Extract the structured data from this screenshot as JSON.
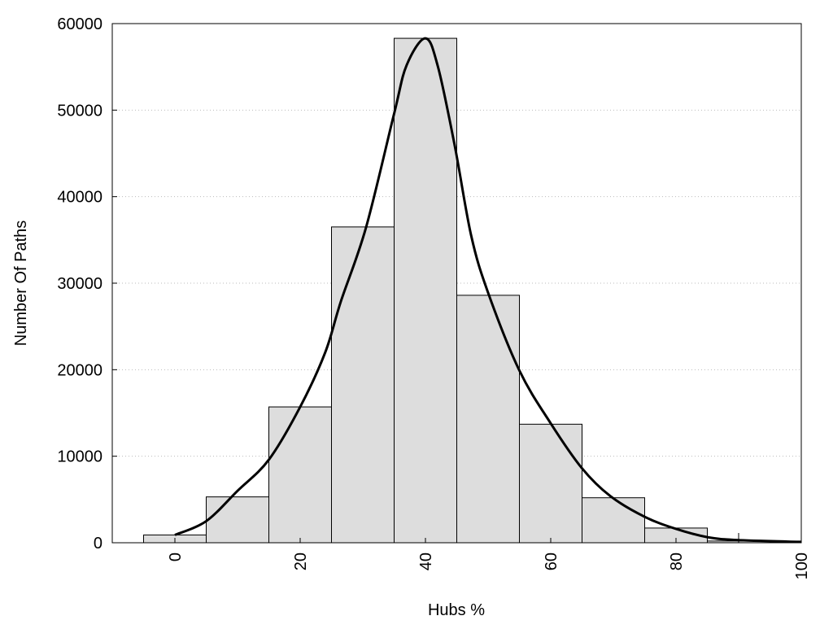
{
  "chart_data": {
    "type": "bar",
    "title": "",
    "xlabel": "Hubs %",
    "ylabel": "Number Of Paths",
    "xlim": [
      -10,
      100
    ],
    "ylim": [
      0,
      60000
    ],
    "xticks": [
      0,
      20,
      40,
      60,
      80,
      100
    ],
    "yticks": [
      0,
      10000,
      20000,
      30000,
      40000,
      50000,
      60000
    ],
    "grid": "horizontal dotted",
    "bar_width": 10,
    "bar_color": "#dddddd",
    "categories": [
      0,
      10,
      20,
      30,
      40,
      50,
      60,
      70,
      80,
      90,
      100
    ],
    "values": [
      900,
      5300,
      15700,
      36500,
      58300,
      28600,
      13700,
      5200,
      1700,
      200,
      80
    ],
    "curve": {
      "type": "line",
      "color": "#000000",
      "x": [
        0,
        5,
        10,
        15,
        20,
        24,
        26.5,
        30.5,
        35,
        37,
        40,
        42,
        44.7,
        47.3,
        50,
        55,
        60,
        65,
        69.5,
        75,
        80,
        85,
        90,
        100
      ],
      "y": [
        900,
        2500,
        6000,
        9600,
        15700,
        22000,
        27900,
        36400,
        49600,
        55200,
        58300,
        55000,
        45800,
        35500,
        28900,
        19900,
        13800,
        8600,
        5400,
        3000,
        1600,
        650,
        300,
        100
      ]
    }
  }
}
